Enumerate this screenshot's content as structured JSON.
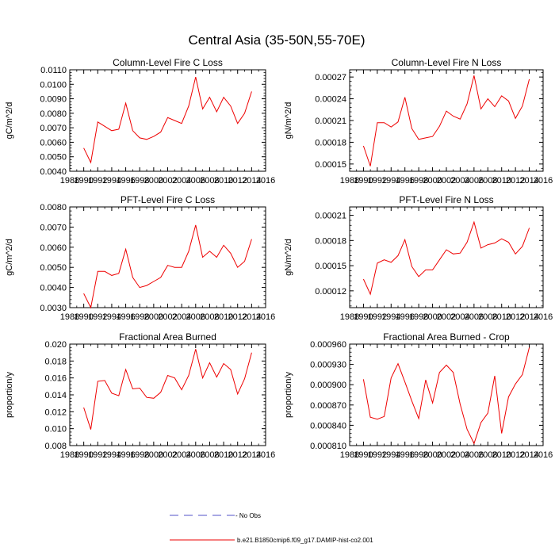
{
  "figure": {
    "title": "Central Asia (35-50N,55-70E)",
    "legend": {
      "no_obs_label": "- No Obs",
      "model_label": "b.e21.B1850cmip6.f09_g17.DAMIP-hist-co2.001",
      "no_obs_color": "#5050c8",
      "model_color": "#ee0000"
    }
  },
  "chart_data": [
    {
      "type": "line",
      "title": "Column-Level Fire C Loss",
      "xlabel": "",
      "ylabel": "gC/m^2/d",
      "xlim": [
        1988,
        2016
      ],
      "ylim": [
        0.004,
        0.011
      ],
      "xticks": [
        "1988",
        "1990",
        "1992",
        "1994",
        "1996",
        "1998",
        "2000",
        "2002",
        "2004",
        "2006",
        "2008",
        "2010",
        "2012",
        "2014",
        "2016"
      ],
      "yticks": [
        "0.0040",
        "0.0050",
        "0.0060",
        "0.0070",
        "0.0080",
        "0.0090",
        "0.0100",
        "0.0110"
      ],
      "grid": false,
      "series": [
        {
          "name": "b.e21.B1850cmip6.f09_g17.DAMIP-hist-co2.001",
          "color": "#ee0000",
          "x": [
            1990,
            1991,
            1992,
            1993,
            1994,
            1995,
            1996,
            1997,
            1998,
            1999,
            2000,
            2001,
            2002,
            2003,
            2004,
            2005,
            2006,
            2007,
            2008,
            2009,
            2010,
            2011,
            2012,
            2013,
            2014
          ],
          "y": [
            0.0056,
            0.0046,
            0.0074,
            0.0071,
            0.0068,
            0.0069,
            0.0087,
            0.0068,
            0.0063,
            0.0062,
            0.0064,
            0.0067,
            0.0077,
            0.0075,
            0.0073,
            0.0085,
            0.0105,
            0.0083,
            0.0091,
            0.0081,
            0.0091,
            0.0085,
            0.0073,
            0.008,
            0.0095
          ]
        }
      ]
    },
    {
      "type": "line",
      "title": "Column-Level Fire N Loss",
      "xlabel": "",
      "ylabel": "gN/m^2/d",
      "xlim": [
        1988,
        2016
      ],
      "ylim": [
        0.00014,
        0.00028
      ],
      "xticks": [
        "1988",
        "1990",
        "1992",
        "1994",
        "1996",
        "1998",
        "2000",
        "2002",
        "2004",
        "2006",
        "2008",
        "2010",
        "2012",
        "2014",
        "2016"
      ],
      "yticks": [
        "0.00015",
        "0.00018",
        "0.00021",
        "0.00024",
        "0.00027"
      ],
      "grid": false,
      "series": [
        {
          "name": "b.e21.B1850cmip6.f09_g17.DAMIP-hist-co2.001",
          "color": "#ee0000",
          "x": [
            1990,
            1991,
            1992,
            1993,
            1994,
            1995,
            1996,
            1997,
            1998,
            1999,
            2000,
            2001,
            2002,
            2003,
            2004,
            2005,
            2006,
            2007,
            2008,
            2009,
            2010,
            2011,
            2012,
            2013,
            2014
          ],
          "y": [
            0.000175,
            0.000147,
            0.000207,
            0.000207,
            0.000201,
            0.000208,
            0.000242,
            0.000199,
            0.000184,
            0.000186,
            0.000188,
            0.000202,
            0.000223,
            0.000216,
            0.000212,
            0.000233,
            0.000272,
            0.000226,
            0.00024,
            0.000229,
            0.000244,
            0.000237,
            0.000213,
            0.00023,
            0.000267
          ]
        }
      ]
    },
    {
      "type": "line",
      "title": "PFT-Level Fire C Loss",
      "xlabel": "",
      "ylabel": "gC/m^2/d",
      "xlim": [
        1988,
        2016
      ],
      "ylim": [
        0.003,
        0.008
      ],
      "xticks": [
        "1988",
        "1990",
        "1992",
        "1994",
        "1996",
        "1998",
        "2000",
        "2002",
        "2004",
        "2006",
        "2008",
        "2010",
        "2012",
        "2014",
        "2016"
      ],
      "yticks": [
        "0.0030",
        "0.0040",
        "0.0050",
        "0.0060",
        "0.0070",
        "0.0080"
      ],
      "grid": false,
      "series": [
        {
          "name": "b.e21.B1850cmip6.f09_g17.DAMIP-hist-co2.001",
          "color": "#ee0000",
          "x": [
            1990,
            1991,
            1992,
            1993,
            1994,
            1995,
            1996,
            1997,
            1998,
            1999,
            2000,
            2001,
            2002,
            2003,
            2004,
            2005,
            2006,
            2007,
            2008,
            2009,
            2010,
            2011,
            2012,
            2013,
            2014
          ],
          "y": [
            0.0037,
            0.003,
            0.0048,
            0.0048,
            0.0046,
            0.0047,
            0.0059,
            0.0045,
            0.004,
            0.0041,
            0.0043,
            0.0045,
            0.0051,
            0.005,
            0.005,
            0.0058,
            0.0071,
            0.0055,
            0.0058,
            0.0055,
            0.0061,
            0.0057,
            0.005,
            0.0053,
            0.0064
          ]
        }
      ]
    },
    {
      "type": "line",
      "title": "PFT-Level Fire N Loss",
      "xlabel": "",
      "ylabel": "gN/m^2/d",
      "xlim": [
        1988,
        2016
      ],
      "ylim": [
        0.0001,
        0.00022
      ],
      "xticks": [
        "1988",
        "1990",
        "1992",
        "1994",
        "1996",
        "1998",
        "2000",
        "2002",
        "2004",
        "2006",
        "2008",
        "2010",
        "2012",
        "2014",
        "2016"
      ],
      "yticks": [
        "0.00012",
        "0.00015",
        "0.00018",
        "0.00021"
      ],
      "grid": false,
      "series": [
        {
          "name": "b.e21.B1850cmip6.f09_g17.DAMIP-hist-co2.001",
          "color": "#ee0000",
          "x": [
            1990,
            1991,
            1992,
            1993,
            1994,
            1995,
            1996,
            1997,
            1998,
            1999,
            2000,
            2001,
            2002,
            2003,
            2004,
            2005,
            2006,
            2007,
            2008,
            2009,
            2010,
            2011,
            2012,
            2013,
            2014
          ],
          "y": [
            0.000134,
            0.000116,
            0.000153,
            0.000157,
            0.000154,
            0.000162,
            0.000181,
            0.000149,
            0.000137,
            0.000145,
            0.000145,
            0.000157,
            0.000169,
            0.000164,
            0.000165,
            0.000178,
            0.000202,
            0.000171,
            0.000175,
            0.000177,
            0.000182,
            0.000178,
            0.000164,
            0.000173,
            0.000195
          ]
        }
      ]
    },
    {
      "type": "line",
      "title": "Fractional Area Burned",
      "xlabel": "",
      "ylabel": "proportion/y",
      "xlim": [
        1988,
        2016
      ],
      "ylim": [
        0.008,
        0.02
      ],
      "xticks": [
        "1988",
        "1990",
        "1992",
        "1994",
        "1996",
        "1998",
        "2000",
        "2002",
        "2004",
        "2006",
        "2008",
        "2010",
        "2012",
        "2014",
        "2016"
      ],
      "yticks": [
        "0.008",
        "0.010",
        "0.012",
        "0.014",
        "0.016",
        "0.018",
        "0.020"
      ],
      "grid": false,
      "series": [
        {
          "name": "b.e21.B1850cmip6.f09_g17.DAMIP-hist-co2.001",
          "color": "#ee0000",
          "x": [
            1990,
            1991,
            1992,
            1993,
            1994,
            1995,
            1996,
            1997,
            1998,
            1999,
            2000,
            2001,
            2002,
            2003,
            2004,
            2005,
            2006,
            2007,
            2008,
            2009,
            2010,
            2011,
            2012,
            2013,
            2014
          ],
          "y": [
            0.0125,
            0.0099,
            0.0156,
            0.0157,
            0.0142,
            0.0139,
            0.017,
            0.0147,
            0.0148,
            0.0137,
            0.0136,
            0.0143,
            0.0163,
            0.016,
            0.0146,
            0.0163,
            0.0194,
            0.016,
            0.0178,
            0.0161,
            0.0177,
            0.017,
            0.0141,
            0.0159,
            0.019
          ]
        }
      ]
    },
    {
      "type": "line",
      "title": "Fractional Area Burned - Crop",
      "xlabel": "",
      "ylabel": "proportion/y",
      "xlim": [
        1988,
        2016
      ],
      "ylim": [
        0.00081,
        0.00096
      ],
      "xticks": [
        "1988",
        "1990",
        "1992",
        "1994",
        "1996",
        "1998",
        "2000",
        "2002",
        "2004",
        "2006",
        "2008",
        "2010",
        "2012",
        "2014",
        "2016"
      ],
      "yticks": [
        "0.000810",
        "0.000840",
        "0.000870",
        "0.000900",
        "0.000930",
        "0.000960"
      ],
      "grid": false,
      "series": [
        {
          "name": "b.e21.B1850cmip6.f09_g17.DAMIP-hist-co2.001",
          "color": "#ee0000",
          "x": [
            1990,
            1991,
            1992,
            1993,
            1994,
            1995,
            1996,
            1997,
            1998,
            1999,
            2000,
            2001,
            2002,
            2003,
            2004,
            2005,
            2006,
            2007,
            2008,
            2009,
            2010,
            2011,
            2012,
            2013,
            2014
          ],
          "y": [
            0.000908,
            0.000852,
            0.000849,
            0.000853,
            0.00091,
            0.000931,
            0.000904,
            0.000876,
            0.00085,
            0.000907,
            0.000873,
            0.000918,
            0.000929,
            0.000918,
            0.000871,
            0.000834,
            0.000813,
            0.000844,
            0.000858,
            0.000913,
            0.000828,
            0.000882,
            0.000901,
            0.000915,
            0.000955
          ]
        }
      ]
    }
  ]
}
